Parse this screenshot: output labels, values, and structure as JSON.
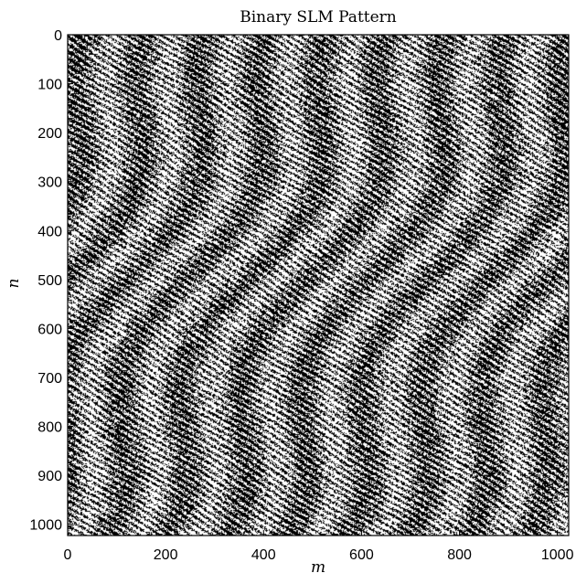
{
  "chart_data": {
    "type": "heatmap",
    "title": "Binary SLM Pattern",
    "xlabel": "m",
    "ylabel": "n",
    "x_range": [
      0,
      1023
    ],
    "y_range": [
      0,
      1023
    ],
    "x_ticks": [
      0,
      200,
      400,
      600,
      800,
      1000
    ],
    "y_ticks": [
      0,
      100,
      200,
      300,
      400,
      500,
      600,
      700,
      800,
      900,
      1000
    ],
    "y_axis_inverted": true,
    "value_levels": [
      0,
      1
    ],
    "colormap": [
      "#000000",
      "#ffffff"
    ],
    "pattern": "random binary pixels with fine diagonal streaks"
  }
}
